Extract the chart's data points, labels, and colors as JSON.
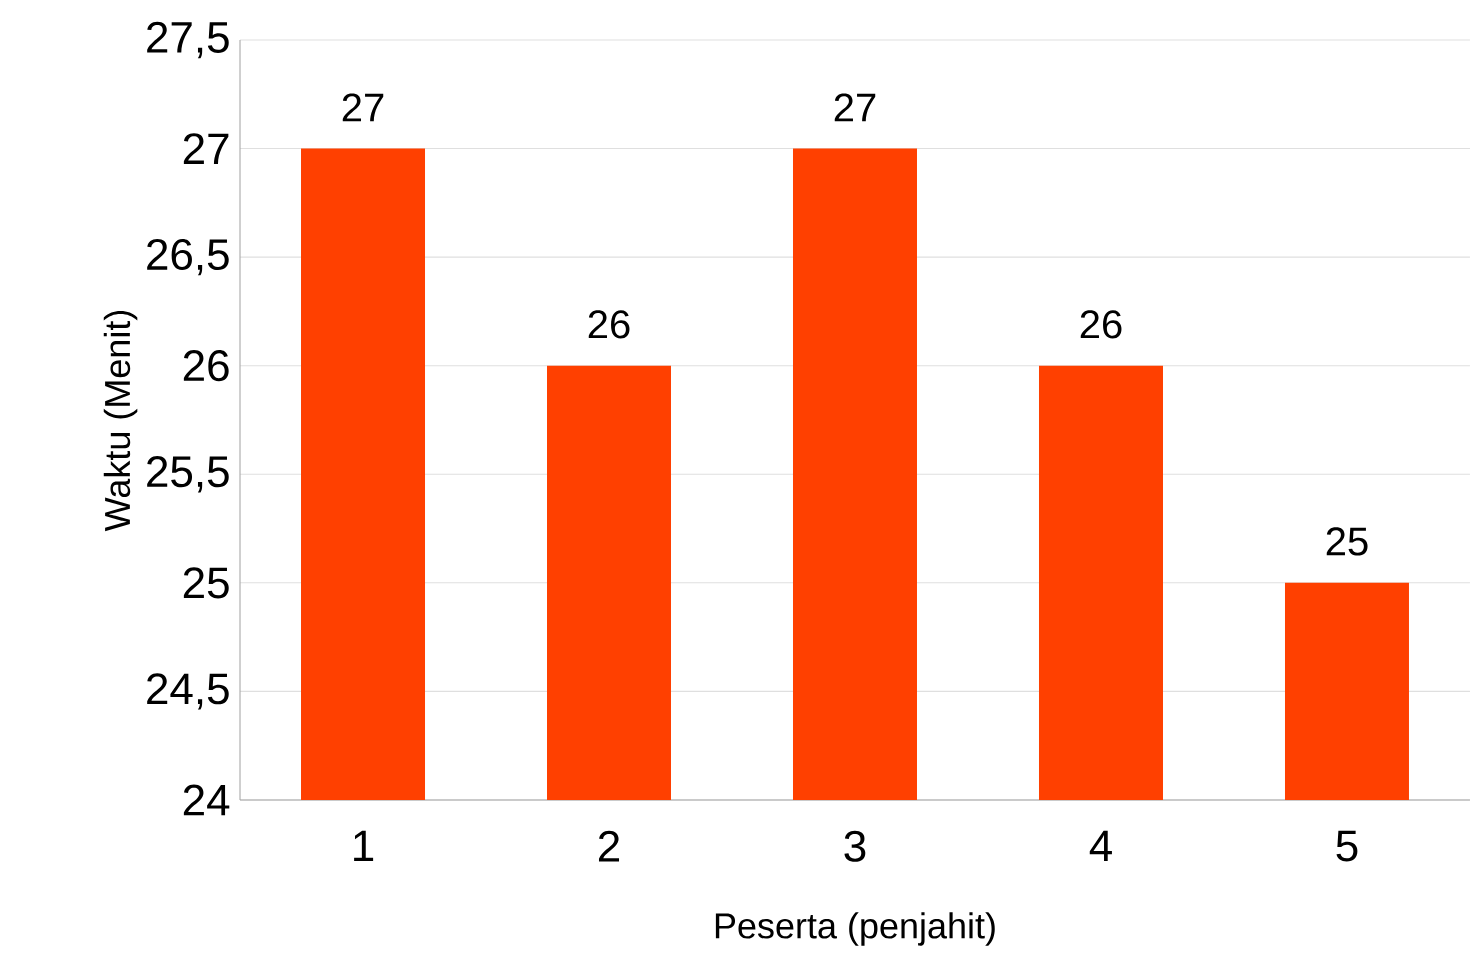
{
  "chart_data": {
    "type": "bar",
    "xlabel": "Peserta (penjahit)",
    "ylabel": "Waktu (Menit)",
    "categories": [
      "1",
      "2",
      "3",
      "4",
      "5"
    ],
    "values": [
      27,
      26,
      27,
      26,
      25
    ],
    "color": "#ff4000",
    "ylim": [
      24,
      27.5
    ],
    "yticks": [
      24,
      {
        "value": 24.5,
        "label": "24,5"
      },
      25,
      {
        "value": 25.5,
        "label": "25,5"
      },
      26,
      {
        "value": 26.5,
        "label": "26,5"
      },
      27,
      {
        "value": 27.5,
        "label": "27,5"
      }
    ],
    "grid": "y",
    "data_labels": true
  }
}
